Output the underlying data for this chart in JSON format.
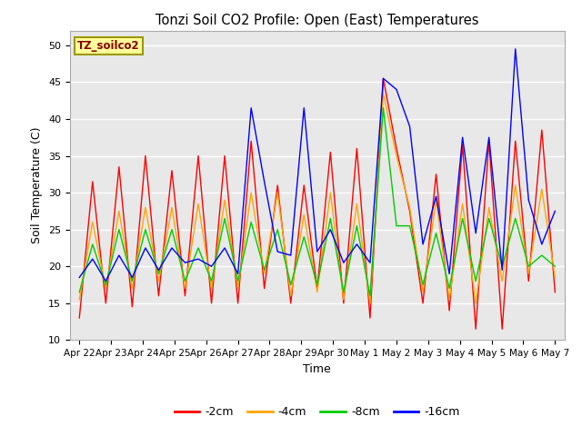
{
  "title": "Tonzi Soil CO2 Profile: Open (East) Temperatures",
  "xlabel": "Time",
  "ylabel": "Soil Temperature (C)",
  "ylim": [
    10,
    52
  ],
  "yticks": [
    10,
    15,
    20,
    25,
    30,
    35,
    40,
    45,
    50
  ],
  "x_labels": [
    "Apr 22",
    "Apr 23",
    "Apr 24",
    "Apr 25",
    "Apr 26",
    "Apr 27",
    "Apr 28",
    "Apr 29",
    "Apr 30",
    "May 1",
    "May 2",
    "May 3",
    "May 4",
    "May 5",
    "May 6",
    "May 7"
  ],
  "legend_label": "TZ_soilco2",
  "series_labels": [
    "-2cm",
    "-4cm",
    "-8cm",
    "-16cm"
  ],
  "series_colors": [
    "#ff0000",
    "#ffa500",
    "#00cc00",
    "#0000ff"
  ],
  "fig_bg": "#ffffff",
  "plot_bg": "#e8e8e8",
  "grid_color": "#ffffff",
  "d2cm": [
    13.0,
    31.5,
    15.0,
    33.5,
    14.5,
    35.0,
    16.0,
    33.0,
    16.0,
    35.0,
    15.0,
    35.0,
    15.0,
    37.0,
    17.0,
    31.0,
    15.0,
    31.0,
    17.0,
    35.5,
    15.0,
    36.0,
    13.0,
    45.5,
    36.0,
    27.5,
    15.0,
    32.5,
    14.0,
    36.5,
    11.5,
    37.0,
    11.5,
    37.0,
    18.0,
    38.5,
    16.5
  ],
  "d4cm": [
    15.5,
    26.0,
    17.0,
    27.5,
    17.0,
    28.0,
    18.0,
    28.0,
    17.0,
    28.5,
    17.0,
    29.0,
    17.0,
    30.0,
    19.0,
    30.0,
    16.0,
    27.0,
    16.5,
    30.0,
    15.5,
    28.5,
    15.0,
    43.5,
    35.0,
    28.0,
    16.5,
    29.0,
    15.5,
    28.5,
    15.0,
    28.0,
    18.0,
    31.0,
    19.0,
    30.5,
    18.5
  ],
  "d8cm": [
    16.5,
    23.0,
    17.5,
    25.0,
    18.0,
    25.0,
    19.0,
    25.0,
    18.0,
    22.5,
    18.0,
    26.5,
    18.0,
    26.0,
    19.5,
    25.0,
    17.5,
    24.0,
    17.5,
    26.5,
    16.5,
    25.5,
    16.0,
    41.5,
    25.5,
    25.5,
    17.5,
    24.5,
    17.0,
    26.5,
    18.0,
    26.5,
    20.0,
    26.5,
    20.0,
    21.5,
    20.0
  ],
  "d16cm": [
    18.5,
    21.0,
    18.0,
    21.5,
    18.5,
    22.5,
    19.5,
    22.5,
    20.5,
    21.0,
    20.0,
    22.5,
    19.0,
    41.5,
    31.5,
    22.0,
    21.5,
    41.5,
    22.0,
    25.0,
    20.5,
    23.0,
    20.5,
    45.5,
    44.0,
    39.0,
    23.0,
    29.5,
    19.0,
    37.5,
    24.5,
    37.5,
    19.5,
    49.5,
    29.0,
    23.0,
    27.5
  ]
}
